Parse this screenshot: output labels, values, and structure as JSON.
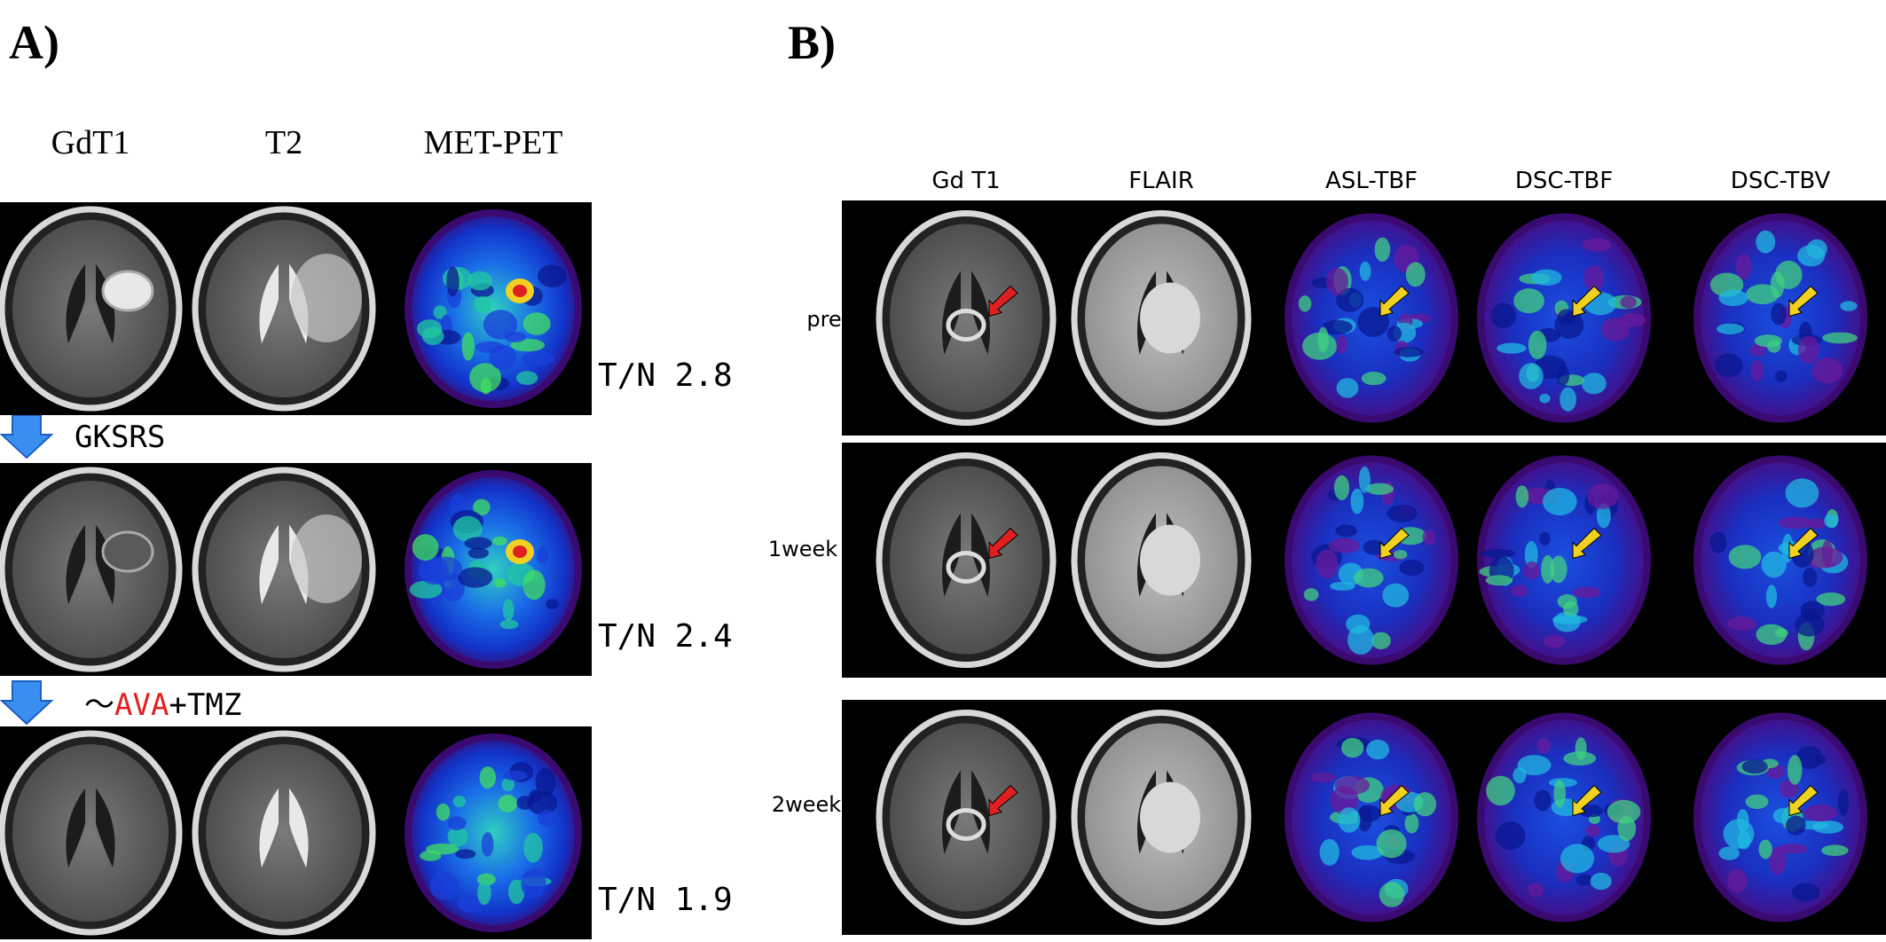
{
  "panel_a": {
    "label": "A)",
    "columns": [
      "GdT1",
      "T2",
      "MET-PET"
    ],
    "ratios": [
      "T/N 2.8",
      "T/N 2.4",
      "T/N 1.9"
    ],
    "step_1": "GKSRS",
    "step_2": {
      "prefix": "～",
      "drug": "AVA",
      "suffix": "+TMZ"
    }
  },
  "panel_b": {
    "label": "B)",
    "columns": [
      "Gd T1",
      "FLAIR",
      "ASL-TBF",
      "DSC-TBF",
      "DSC-TBV"
    ],
    "rows": [
      "pre",
      "1week",
      "2week"
    ]
  }
}
